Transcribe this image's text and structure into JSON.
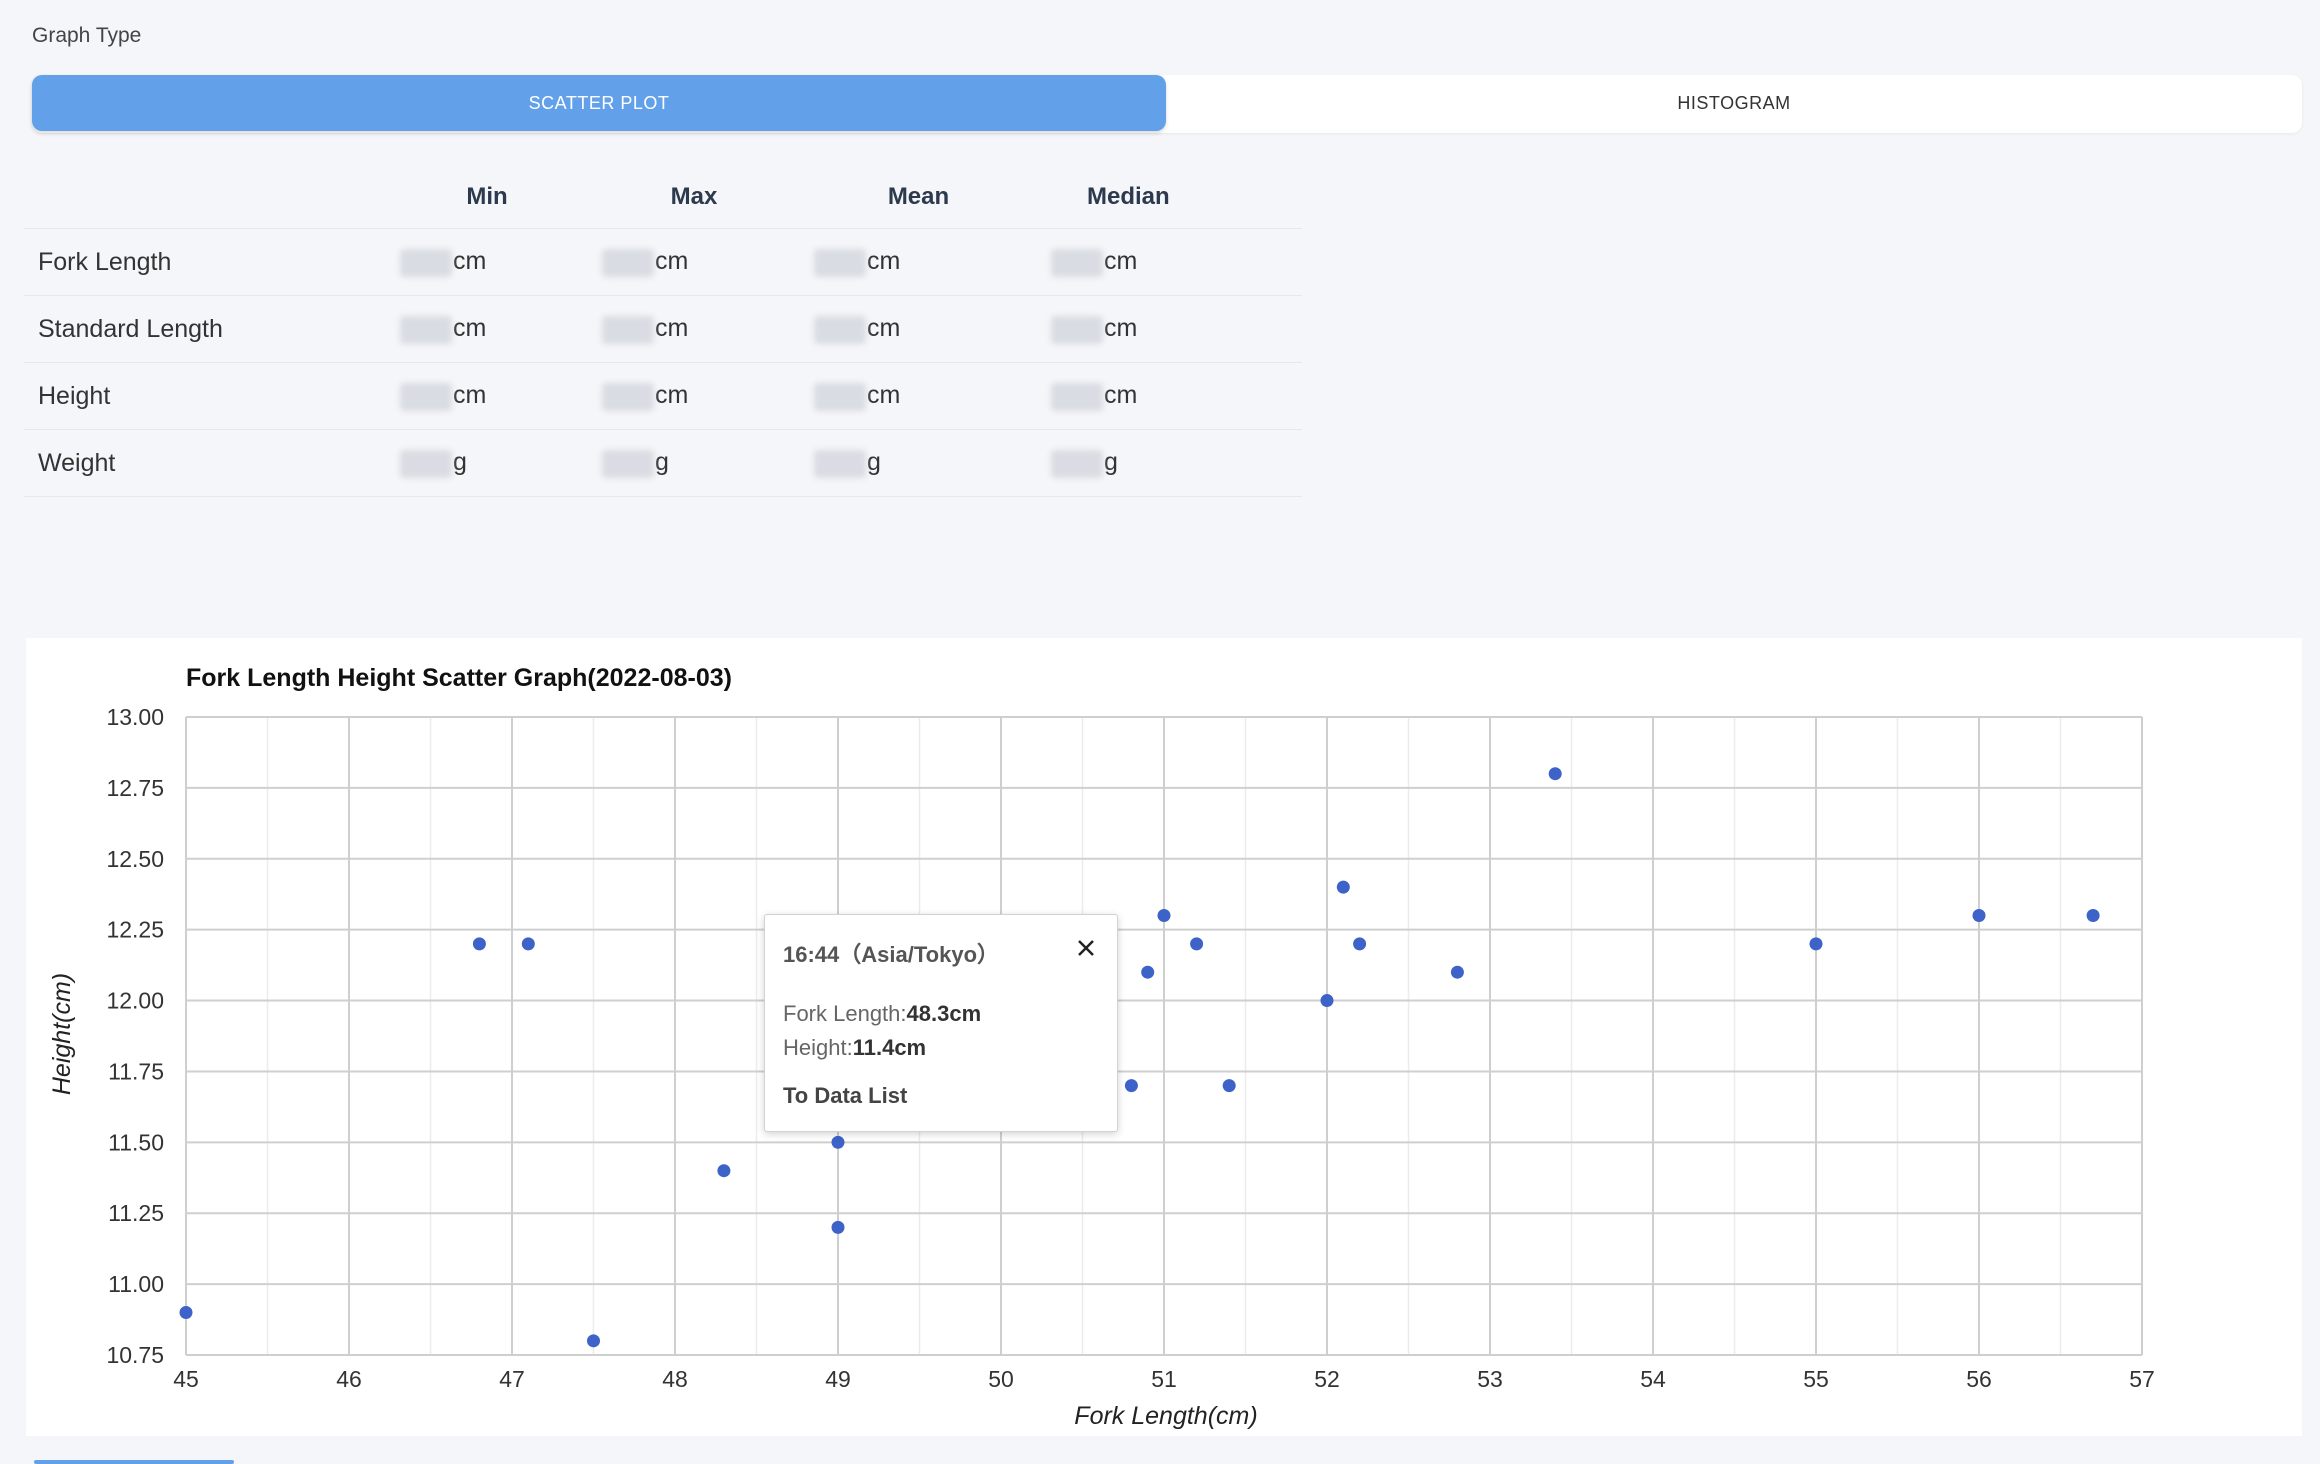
{
  "graph_type": {
    "label": "Graph Type",
    "options": [
      "SCATTER PLOT",
      "HISTOGRAM"
    ],
    "selected": "SCATTER PLOT"
  },
  "stats_table": {
    "headers": [
      "Min",
      "Max",
      "Mean",
      "Median"
    ],
    "rows": [
      {
        "label": "Fork Length",
        "unit": "cm"
      },
      {
        "label": "Standard Length",
        "unit": "cm"
      },
      {
        "label": "Height",
        "unit": "cm"
      },
      {
        "label": "Weight",
        "unit": "g"
      }
    ]
  },
  "chart_data": {
    "type": "scatter",
    "title": "Fork Length Height Scatter Graph(2022-08-03)",
    "xlabel": "Fork Length(cm)",
    "ylabel": "Height(cm)",
    "xlim": [
      45,
      57
    ],
    "ylim": [
      10.75,
      13.0
    ],
    "xticks": [
      "45",
      "46",
      "47",
      "48",
      "49",
      "50",
      "51",
      "52",
      "53",
      "54",
      "55",
      "56",
      "57"
    ],
    "yticks": [
      "10.75",
      "11.00",
      "11.25",
      "11.50",
      "11.75",
      "12.00",
      "12.25",
      "12.50",
      "12.75",
      "13.00"
    ],
    "grid": true,
    "marker_color": "#3d63c9",
    "points": [
      {
        "x": 45.0,
        "y": 10.9
      },
      {
        "x": 46.8,
        "y": 12.2
      },
      {
        "x": 47.1,
        "y": 12.2
      },
      {
        "x": 47.5,
        "y": 10.8
      },
      {
        "x": 48.3,
        "y": 11.4
      },
      {
        "x": 49.0,
        "y": 11.5
      },
      {
        "x": 49.0,
        "y": 11.2
      },
      {
        "x": 50.8,
        "y": 11.7
      },
      {
        "x": 50.9,
        "y": 12.1
      },
      {
        "x": 51.0,
        "y": 12.3
      },
      {
        "x": 51.2,
        "y": 12.2
      },
      {
        "x": 51.4,
        "y": 11.7
      },
      {
        "x": 52.0,
        "y": 12.0
      },
      {
        "x": 52.1,
        "y": 12.4
      },
      {
        "x": 52.2,
        "y": 12.2
      },
      {
        "x": 52.8,
        "y": 12.1
      },
      {
        "x": 53.4,
        "y": 12.8
      },
      {
        "x": 55.0,
        "y": 12.2
      },
      {
        "x": 56.0,
        "y": 12.3
      },
      {
        "x": 56.7,
        "y": 12.3
      }
    ]
  },
  "tooltip": {
    "time": "16:44（Asia/Tokyo）",
    "fork_label": "Fork Length:",
    "fork_value": "48.3cm",
    "height_label": "Height:",
    "height_value": "11.4cm",
    "link": "To Data List"
  }
}
